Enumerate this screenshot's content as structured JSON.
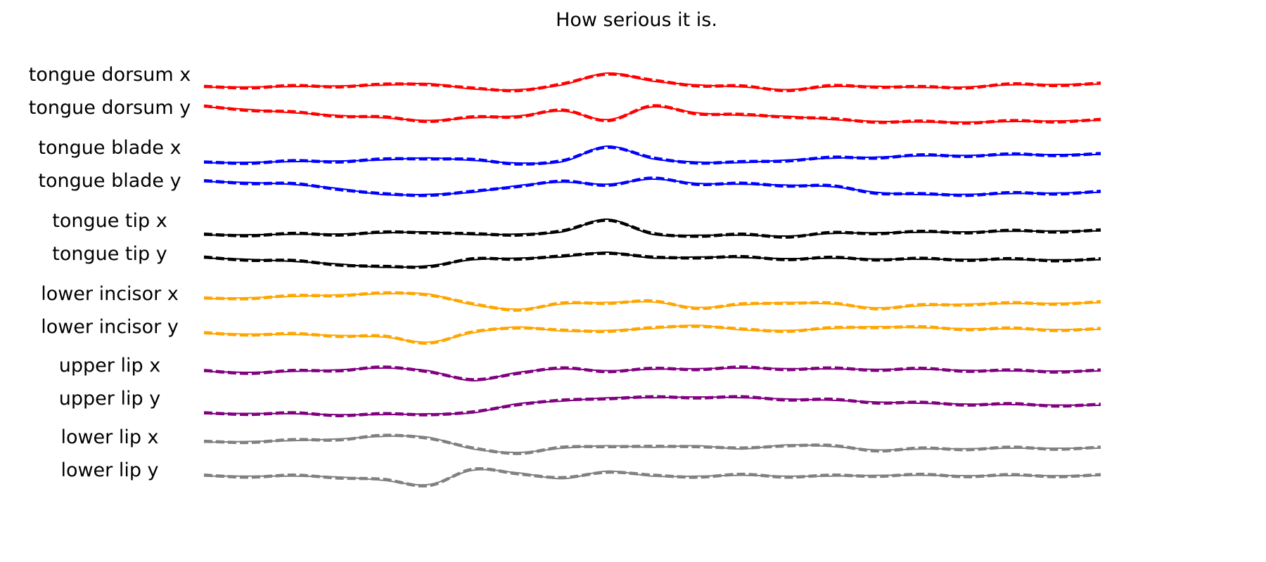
{
  "chart_data": {
    "type": "line",
    "title": "How serious it is.",
    "grid": false,
    "axes_visible": false,
    "line_styles": {
      "solid": "reference",
      "dashed": "estimate"
    },
    "x": [
      0.0,
      0.05,
      0.1,
      0.15,
      0.2,
      0.25,
      0.3,
      0.35,
      0.4,
      0.45,
      0.5,
      0.55,
      0.6,
      0.65,
      0.7,
      0.75,
      0.8,
      0.85,
      0.9,
      0.95,
      1.0
    ],
    "series": [
      {
        "name": "tongue dorsum x",
        "color": "#ff0000",
        "values": [
          0.15,
          0.18,
          0.2,
          0.24,
          0.28,
          0.38,
          0.05,
          0.02,
          0.3,
          1.0,
          0.52,
          0.3,
          0.18,
          0.02,
          0.2,
          0.22,
          0.14,
          0.18,
          0.3,
          0.32,
          0.34
        ]
      },
      {
        "name": "tongue dorsum y",
        "color": "#ff0000",
        "values": [
          0.95,
          0.8,
          0.6,
          0.45,
          0.3,
          0.15,
          0.3,
          0.42,
          0.7,
          0.2,
          0.95,
          0.6,
          0.45,
          0.4,
          0.2,
          0.1,
          0.05,
          0.05,
          0.08,
          0.12,
          0.15
        ]
      },
      {
        "name": "tongue blade x",
        "color": "#0000ff",
        "values": [
          0.0,
          0.04,
          0.08,
          0.12,
          0.18,
          0.3,
          0.15,
          0.0,
          0.08,
          1.0,
          0.25,
          0.06,
          0.02,
          0.18,
          0.28,
          0.35,
          0.42,
          0.45,
          0.48,
          0.5,
          0.5
        ]
      },
      {
        "name": "tongue blade y",
        "color": "#0000ff",
        "values": [
          0.85,
          0.8,
          0.68,
          0.45,
          0.08,
          0.1,
          0.22,
          0.62,
          0.82,
          0.7,
          1.0,
          0.75,
          0.7,
          0.65,
          0.55,
          0.22,
          0.08,
          0.1,
          0.14,
          0.18,
          0.22
        ]
      },
      {
        "name": "tongue tip x",
        "color": "#000000",
        "values": [
          0.05,
          0.08,
          0.1,
          0.12,
          0.18,
          0.25,
          0.08,
          0.12,
          0.25,
          1.0,
          0.1,
          0.05,
          0.05,
          0.0,
          0.15,
          0.2,
          0.22,
          0.25,
          0.28,
          0.3,
          0.3
        ]
      },
      {
        "name": "tongue tip y",
        "color": "#000000",
        "values": [
          0.65,
          0.58,
          0.45,
          0.3,
          0.1,
          0.2,
          0.55,
          0.65,
          0.72,
          1.0,
          0.65,
          0.72,
          0.68,
          0.62,
          0.64,
          0.6,
          0.58,
          0.58,
          0.56,
          0.55,
          0.55
        ]
      },
      {
        "name": "lower incisor x",
        "color": "#ffa500",
        "values": [
          0.6,
          0.68,
          0.75,
          0.85,
          0.9,
          0.9,
          0.25,
          0.0,
          0.3,
          0.4,
          0.42,
          0.1,
          0.25,
          0.4,
          0.3,
          0.08,
          0.2,
          0.3,
          0.32,
          0.35,
          0.38
        ]
      },
      {
        "name": "lower incisor y",
        "color": "#ffa500",
        "values": [
          0.5,
          0.48,
          0.45,
          0.4,
          0.3,
          0.0,
          0.55,
          0.9,
          0.65,
          0.7,
          0.8,
          1.0,
          0.72,
          0.7,
          0.8,
          0.92,
          0.85,
          0.8,
          0.78,
          0.75,
          0.75
        ]
      },
      {
        "name": "upper lip x",
        "color": "#800080",
        "values": [
          0.55,
          0.5,
          0.55,
          0.65,
          0.75,
          0.6,
          0.0,
          0.5,
          0.7,
          0.6,
          0.68,
          0.72,
          0.75,
          0.72,
          0.7,
          0.68,
          0.68,
          0.62,
          0.58,
          0.58,
          0.58
        ]
      },
      {
        "name": "upper lip y",
        "color": "#800080",
        "values": [
          0.0,
          0.02,
          0.0,
          -0.05,
          -0.05,
          0.0,
          0.05,
          0.6,
          0.75,
          0.95,
          0.95,
          1.0,
          0.95,
          0.88,
          0.8,
          0.7,
          0.62,
          0.58,
          0.54,
          0.52,
          0.5
        ]
      },
      {
        "name": "lower lip x",
        "color": "#808080",
        "values": [
          0.6,
          0.65,
          0.7,
          0.8,
          0.95,
          0.9,
          0.2,
          0.0,
          0.25,
          0.4,
          0.3,
          0.4,
          0.2,
          0.45,
          0.35,
          0.15,
          0.2,
          0.22,
          0.25,
          0.25,
          0.25
        ]
      },
      {
        "name": "lower lip y",
        "color": "#808080",
        "values": [
          0.55,
          0.55,
          0.55,
          0.5,
          0.3,
          0.05,
          0.9,
          0.75,
          0.4,
          0.85,
          0.55,
          0.55,
          0.6,
          0.55,
          0.55,
          0.6,
          0.6,
          0.58,
          0.58,
          0.58,
          0.58
        ]
      }
    ]
  }
}
